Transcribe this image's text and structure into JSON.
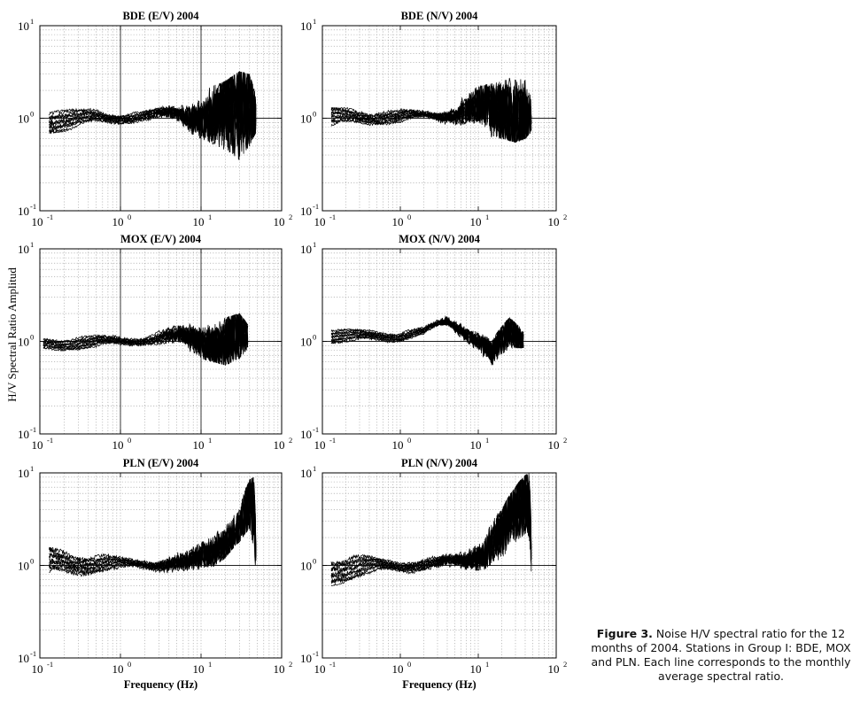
{
  "figure": {
    "ylabel": "H/V Spectral Ratio Amplitud",
    "xlabel": "Frequency (Hz)",
    "caption_label": "Figure 3.",
    "caption_text": "Noise H/V spectral ratio for the 12 months of 2004. Stations in Group I: BDE, MOX and PLN. Each line corresponds to the monthly average spectral ratio."
  },
  "chart_data": [
    {
      "type": "line",
      "title": "BDE (E/V) 2004",
      "x_scale": "log",
      "y_scale": "log",
      "xlim": [
        0.1,
        100
      ],
      "ylim": [
        0.1,
        10
      ],
      "x_ticks": [
        "10^-1",
        "10^0",
        "10^1",
        "10^2"
      ],
      "y_ticks": [
        "10^-1",
        "10^0",
        "10^1"
      ],
      "grid": true,
      "reference_lines": {
        "y": 1,
        "x": [
          1,
          10
        ]
      },
      "n_series": 12,
      "f_start": 0.13,
      "f_end": 48,
      "envelope": {
        "f": [
          0.13,
          0.5,
          1,
          2,
          5,
          10,
          20,
          30,
          40,
          48
        ],
        "min": [
          0.68,
          0.8,
          0.82,
          0.85,
          0.8,
          0.6,
          0.45,
          0.35,
          0.5,
          0.7
        ],
        "max": [
          1.3,
          1.28,
          1.25,
          1.3,
          1.55,
          2.0,
          2.5,
          3.2,
          3.0,
          1.7
        ]
      }
    },
    {
      "type": "line",
      "title": "BDE (N/V) 2004",
      "x_scale": "log",
      "y_scale": "log",
      "xlim": [
        0.1,
        100
      ],
      "ylim": [
        0.1,
        10
      ],
      "x_ticks": [
        "10^-1",
        "10^0",
        "10^1",
        "10^2"
      ],
      "y_ticks": [
        "10^-1",
        "10^0",
        "10^1"
      ],
      "grid": true,
      "reference_lines": {
        "y": 1,
        "x": []
      },
      "n_series": 12,
      "f_start": 0.13,
      "f_end": 48,
      "envelope": {
        "f": [
          0.13,
          0.5,
          1,
          2,
          5,
          10,
          20,
          30,
          40,
          48
        ],
        "min": [
          0.8,
          0.82,
          0.82,
          0.85,
          0.8,
          0.65,
          0.6,
          0.55,
          0.6,
          0.7
        ],
        "max": [
          1.3,
          1.3,
          1.3,
          1.35,
          1.6,
          2.2,
          2.5,
          2.9,
          2.6,
          1.6
        ]
      }
    },
    {
      "type": "line",
      "title": "MOX (E/V) 2004",
      "x_scale": "log",
      "y_scale": "log",
      "xlim": [
        0.1,
        100
      ],
      "ylim": [
        0.1,
        10
      ],
      "x_ticks": [
        "10^-1",
        "10^0",
        "10^1",
        "10^2"
      ],
      "y_ticks": [
        "10^-1",
        "10^0",
        "10^1"
      ],
      "grid": true,
      "reference_lines": {
        "y": 1,
        "x": [
          1,
          10
        ]
      },
      "n_series": 12,
      "f_start": 0.11,
      "f_end": 38,
      "envelope": {
        "f": [
          0.11,
          0.5,
          1,
          2,
          5,
          10,
          20,
          30,
          38
        ],
        "min": [
          0.78,
          0.8,
          0.8,
          0.85,
          0.75,
          0.65,
          0.55,
          0.65,
          0.8
        ],
        "max": [
          1.1,
          1.2,
          1.25,
          1.3,
          1.6,
          1.7,
          1.8,
          2.0,
          1.5
        ]
      }
    },
    {
      "type": "line",
      "title": "MOX (N/V) 2004",
      "x_scale": "log",
      "y_scale": "log",
      "xlim": [
        0.1,
        100
      ],
      "ylim": [
        0.1,
        10
      ],
      "x_ticks": [
        "10^-1",
        "10^0",
        "10^1",
        "10^2"
      ],
      "y_ticks": [
        "10^-1",
        "10^0",
        "10^1"
      ],
      "grid": true,
      "reference_lines": {
        "y": 1,
        "x": []
      },
      "n_series": 12,
      "f_start": 0.13,
      "f_end": 38,
      "envelope": {
        "f": [
          0.13,
          0.5,
          1,
          2,
          4,
          8,
          15,
          25,
          38
        ],
        "min": [
          0.95,
          0.95,
          0.95,
          1.05,
          1.3,
          0.9,
          0.5,
          0.85,
          0.85
        ],
        "max": [
          1.35,
          1.4,
          1.35,
          1.5,
          2.2,
          1.5,
          1.0,
          1.8,
          1.3
        ]
      }
    },
    {
      "type": "line",
      "title": "PLN (E/V) 2004",
      "x_scale": "log",
      "y_scale": "log",
      "xlim": [
        0.1,
        100
      ],
      "ylim": [
        0.1,
        10
      ],
      "x_ticks": [
        "10^-1",
        "10^0",
        "10^1",
        "10^2"
      ],
      "y_ticks": [
        "10^-1",
        "10^0",
        "10^1"
      ],
      "grid": true,
      "reference_lines": {
        "y": 1,
        "x": []
      },
      "n_series": 12,
      "f_start": 0.13,
      "f_end": 48,
      "envelope": {
        "f": [
          0.13,
          0.5,
          1,
          3,
          7,
          12,
          20,
          30,
          40,
          45,
          48
        ],
        "min": [
          0.72,
          0.78,
          0.8,
          0.8,
          0.7,
          0.85,
          1.2,
          1.8,
          2.5,
          1.5,
          0.8
        ],
        "max": [
          1.6,
          1.4,
          1.3,
          1.4,
          1.5,
          1.9,
          2.7,
          4.0,
          8.5,
          9.0,
          1.5
        ]
      }
    },
    {
      "type": "line",
      "title": "PLN (N/V) 2004",
      "x_scale": "log",
      "y_scale": "log",
      "xlim": [
        0.1,
        100
      ],
      "ylim": [
        0.1,
        10
      ],
      "x_ticks": [
        "10^-1",
        "10^0",
        "10^1",
        "10^2"
      ],
      "y_ticks": [
        "10^-1",
        "10^0",
        "10^1"
      ],
      "grid": true,
      "reference_lines": {
        "y": 1,
        "x": []
      },
      "n_series": 12,
      "f_start": 0.13,
      "f_end": 48,
      "envelope": {
        "f": [
          0.13,
          0.5,
          1,
          3,
          7,
          12,
          20,
          30,
          40,
          45,
          48
        ],
        "min": [
          0.6,
          0.75,
          0.8,
          0.78,
          0.85,
          0.9,
          1.2,
          1.7,
          2.2,
          2.0,
          0.8
        ],
        "max": [
          1.3,
          1.3,
          1.25,
          1.35,
          1.6,
          2.3,
          4.0,
          7.0,
          9.5,
          10.0,
          2.0
        ]
      }
    }
  ]
}
